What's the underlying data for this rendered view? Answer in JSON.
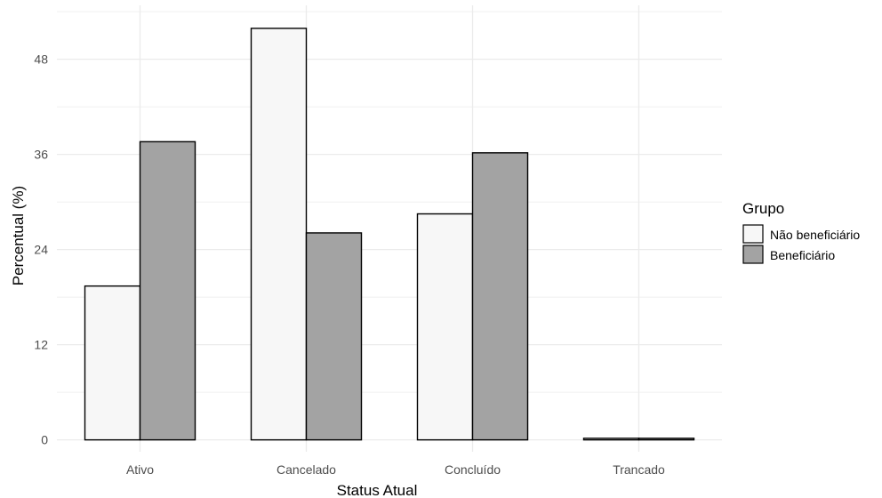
{
  "chart_data": {
    "type": "bar",
    "categories": [
      "Ativo",
      "Cancelado",
      "Concluído",
      "Trancado"
    ],
    "series": [
      {
        "name": "Não beneficiário",
        "values": [
          19.4,
          51.9,
          28.5,
          0.2
        ],
        "color": "#f7f7f7"
      },
      {
        "name": "Beneficiário",
        "values": [
          37.6,
          26.1,
          36.2,
          0.2
        ],
        "color": "#a3a3a3"
      }
    ],
    "xlabel": "Status Atual",
    "ylabel": "Percentual (%)",
    "ylim": [
      -1.5,
      54.8
    ],
    "yticks": [
      "0",
      "12",
      "24",
      "36",
      "48"
    ],
    "legend_title": "Grupo",
    "legend_position": "right",
    "grid": true,
    "border_color": "#000000",
    "grid_color": "#ebebeb"
  }
}
